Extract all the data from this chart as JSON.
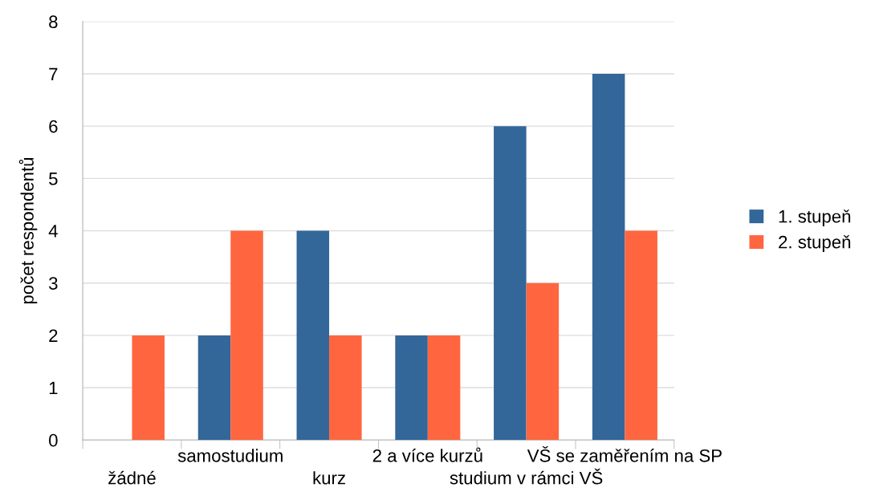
{
  "chart_data": {
    "type": "bar",
    "ylabel": "počet respondentů",
    "categories": [
      "žádné",
      "samostudium",
      "kurz",
      "2 a více kurzů",
      "studium v rámci VŠ",
      "VŠ se zaměřením na SP"
    ],
    "series": [
      {
        "name": "1. stupeň",
        "color": "#336699",
        "values": [
          0,
          2,
          4,
          2,
          6,
          7
        ]
      },
      {
        "name": "2. stupeň",
        "color": "#ff6640",
        "values": [
          2,
          4,
          2,
          2,
          3,
          4
        ]
      }
    ],
    "ylim": [
      0,
      8
    ],
    "yticks": [
      0,
      1,
      2,
      3,
      4,
      5,
      6,
      7,
      8
    ],
    "grid": "y",
    "legend": "right"
  }
}
